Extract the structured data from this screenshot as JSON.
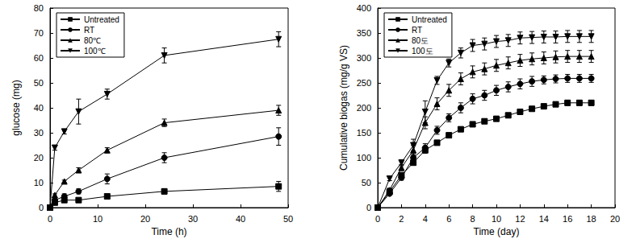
{
  "chart_data": [
    {
      "type": "line",
      "x_label": "Time (h)",
      "y_label": "glucose (mg)",
      "xlim": [
        0,
        50
      ],
      "xticks": [
        0,
        10,
        20,
        30,
        40,
        50
      ],
      "ylim": [
        0,
        80
      ],
      "yticks": [
        0,
        10,
        20,
        30,
        40,
        50,
        60,
        70,
        80
      ],
      "grid": false,
      "legend": "upper left",
      "x": [
        0,
        1,
        3,
        6,
        12,
        24,
        48
      ],
      "series": [
        {
          "name": "Untreated",
          "color": "#000000",
          "marker": "square",
          "values": [
            0,
            2,
            3,
            3,
            4.5,
            6.5,
            8.5
          ],
          "errors": [
            0.3,
            0.3,
            0.3,
            0.5,
            0.5,
            1,
            2
          ]
        },
        {
          "name": "RT",
          "color": "#000000",
          "marker": "circle",
          "values": [
            0,
            3,
            4.5,
            6.5,
            11.5,
            20,
            28.5
          ],
          "errors": [
            0.3,
            0.5,
            1,
            1,
            2,
            2,
            3.5
          ]
        },
        {
          "name": "80℃",
          "color": "#000000",
          "marker": "triangle",
          "values": [
            0,
            5,
            10.5,
            15,
            23,
            34,
            39
          ],
          "errors": [
            0.3,
            0.5,
            0.5,
            1,
            1,
            1.5,
            2
          ]
        },
        {
          "name": "100℃",
          "color": "#000000",
          "marker": "triangle-down",
          "values": [
            0,
            24,
            30.5,
            38.5,
            45.5,
            61,
            67.5
          ],
          "errors": [
            0.3,
            1,
            1,
            5,
            2,
            3,
            3
          ]
        }
      ]
    },
    {
      "type": "line",
      "x_label": "Time (day)",
      "y_label": "Cumulative biogas (mg/g VS)",
      "xlim": [
        0,
        20
      ],
      "xticks": [
        0,
        2,
        4,
        6,
        8,
        10,
        12,
        14,
        16,
        18,
        20
      ],
      "ylim": [
        0,
        400
      ],
      "yticks": [
        0,
        50,
        100,
        150,
        200,
        250,
        300,
        350,
        400
      ],
      "grid": false,
      "legend": "upper left",
      "x": [
        0,
        1,
        2,
        3,
        4,
        5,
        6,
        7,
        8,
        9,
        10,
        11,
        12,
        13,
        14,
        15,
        16,
        17,
        18
      ],
      "series": [
        {
          "name": "Untreated",
          "color": "#000000",
          "marker": "square",
          "values": [
            0,
            32,
            65,
            90,
            115,
            130,
            145,
            157,
            167,
            173,
            178,
            185,
            192,
            198,
            203,
            207,
            210,
            210,
            210
          ],
          "errors": [
            2,
            3,
            4,
            5,
            6,
            4,
            4,
            4,
            4,
            4,
            4,
            4,
            4,
            4,
            4,
            4,
            5,
            5,
            5
          ]
        },
        {
          "name": "RT",
          "color": "#000000",
          "marker": "circle",
          "values": [
            0,
            28,
            60,
            100,
            120,
            155,
            180,
            200,
            218,
            225,
            235,
            242,
            248,
            253,
            256,
            258,
            259,
            259,
            259
          ],
          "errors": [
            2,
            3,
            5,
            8,
            8,
            8,
            8,
            10,
            10,
            10,
            10,
            10,
            10,
            10,
            8,
            8,
            8,
            8,
            8
          ]
        },
        {
          "name": "80도",
          "color": "#000000",
          "marker": "triangle",
          "values": [
            0,
            35,
            80,
            115,
            170,
            208,
            235,
            258,
            272,
            278,
            285,
            290,
            295,
            298,
            300,
            302,
            303,
            303,
            303
          ],
          "errors": [
            2,
            4,
            6,
            10,
            12,
            12,
            12,
            12,
            12,
            12,
            12,
            12,
            12,
            12,
            12,
            12,
            12,
            12,
            12
          ]
        },
        {
          "name": "100도",
          "color": "#000000",
          "marker": "triangle-down",
          "values": [
            0,
            58,
            90,
            125,
            192,
            255,
            290,
            310,
            325,
            328,
            333,
            335,
            340,
            341,
            342,
            342,
            343,
            343,
            343
          ],
          "errors": [
            2,
            4,
            6,
            12,
            22,
            8,
            8,
            10,
            12,
            12,
            12,
            12,
            12,
            12,
            12,
            12,
            12,
            12,
            12
          ]
        }
      ]
    }
  ]
}
